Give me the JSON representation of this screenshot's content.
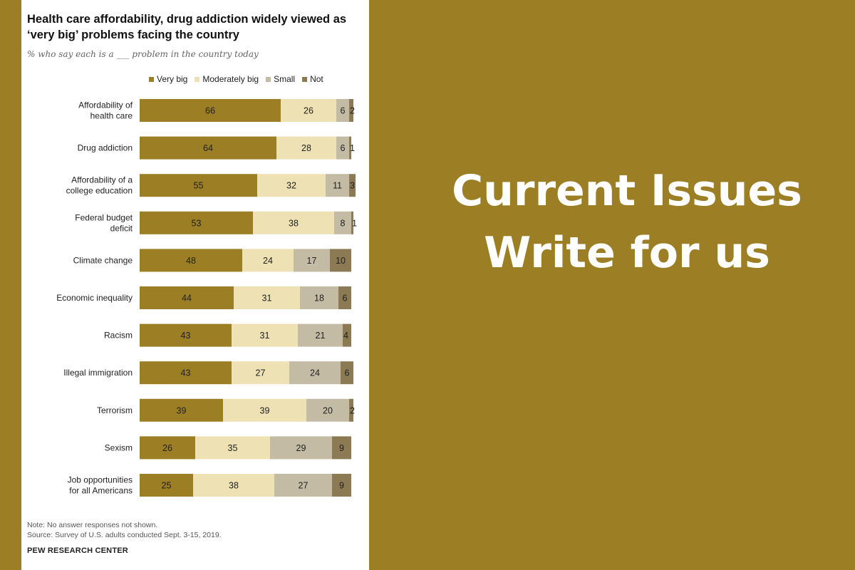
{
  "chart_data": {
    "type": "bar",
    "orientation": "horizontal",
    "stacked": true,
    "title": "Health care affordability, drug addiction widely viewed as ‘very big’ problems facing the country",
    "subtitle": "% who say each is a ___ problem in the country today",
    "legend_placement": "top",
    "categories": [
      [
        "Affordability of",
        "health care"
      ],
      [
        "Drug addiction"
      ],
      [
        "Affordability of a",
        "college education"
      ],
      [
        "Federal budget",
        "deficit"
      ],
      [
        "Climate change"
      ],
      [
        "Economic inequality"
      ],
      [
        "Racism"
      ],
      [
        "Illegal immigration"
      ],
      [
        "Terrorism"
      ],
      [
        "Sexism"
      ],
      [
        "Job opportunities",
        "for all Americans"
      ]
    ],
    "series": [
      {
        "name": "Very big",
        "color": "#9c7e24",
        "values": [
          66,
          64,
          55,
          53,
          48,
          44,
          43,
          43,
          39,
          26,
          25
        ]
      },
      {
        "name": "Moderately big",
        "color": "#eee1b3",
        "values": [
          26,
          28,
          32,
          38,
          24,
          31,
          31,
          27,
          39,
          35,
          38
        ]
      },
      {
        "name": "Small",
        "color": "#c3bba4",
        "values": [
          6,
          6,
          11,
          8,
          17,
          18,
          21,
          24,
          20,
          29,
          27
        ]
      },
      {
        "name": "Not",
        "color": "#8b7a53",
        "values": [
          2,
          1,
          3,
          1,
          10,
          6,
          4,
          6,
          2,
          9,
          9
        ]
      }
    ],
    "xlim": [
      0,
      100
    ],
    "grid": false
  },
  "footer": {
    "note": "Note: No answer responses not shown.",
    "source": "Source: Survey of U.S. adults conducted Sept. 3-15, 2019.",
    "brand": "PEW RESEARCH CENTER"
  },
  "headline": {
    "line1": "Current Issues",
    "line2": "Write for us"
  }
}
